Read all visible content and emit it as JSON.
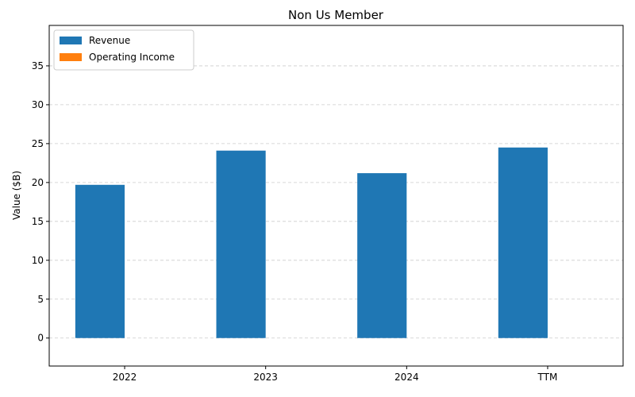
{
  "chart_data": {
    "type": "bar",
    "title": "Non Us Member",
    "y_label": "Value ($B)",
    "categories": [
      "2022",
      "2023",
      "2024",
      "TTM"
    ],
    "series": [
      {
        "name": "Revenue",
        "color": "#1f77b4",
        "values": [
          19.7,
          24.1,
          21.2,
          24.5
        ]
      },
      {
        "name": "Operating Income",
        "color": "#ff7f0e",
        "values": [
          0,
          0,
          0,
          0
        ]
      }
    ],
    "ylim": [
      -3.6,
      40.2
    ],
    "yticks": [
      0,
      5,
      10,
      15,
      20,
      25,
      30,
      35
    ],
    "grid": true,
    "legend": "upper-left"
  }
}
